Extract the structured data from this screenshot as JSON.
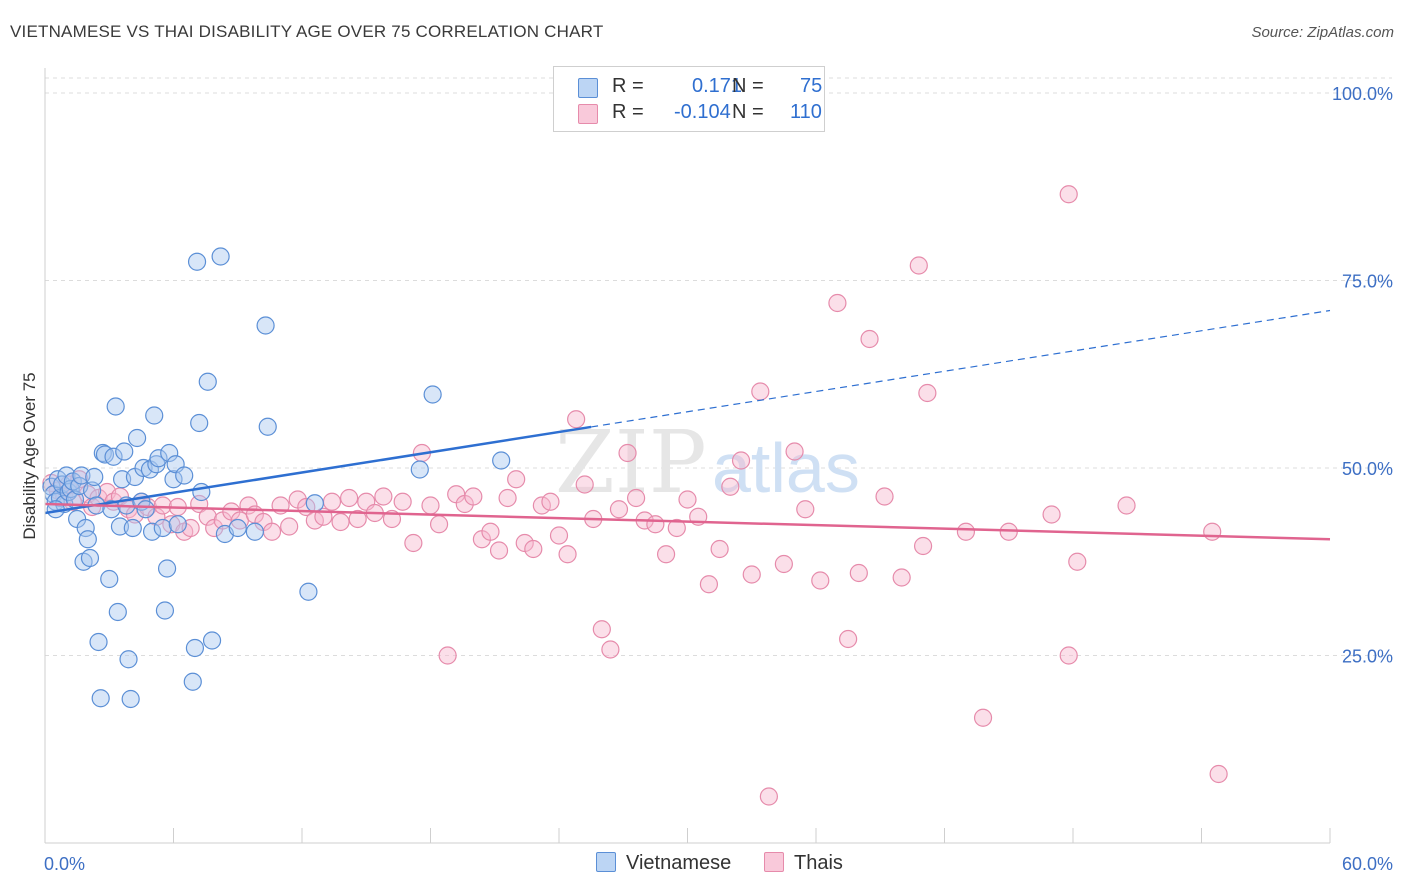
{
  "title": "VIETNAMESE VS THAI DISABILITY AGE OVER 75 CORRELATION CHART",
  "source": "Source: ZipAtlas.com",
  "watermark": {
    "zip": "ZIP",
    "atlas": "atlas"
  },
  "legend_top": {
    "rows": [
      {
        "r_label": "R =",
        "r_value": "0.171",
        "n_label": "N =",
        "n_value": "75"
      },
      {
        "r_label": "R =",
        "r_value": "-0.104",
        "n_label": "N =",
        "n_value": "110"
      }
    ]
  },
  "legend_bottom": [
    "Vietnamese",
    "Thais"
  ],
  "colors": {
    "blue_fill": "#a8c8f0",
    "blue_stroke": "#5b8fd6",
    "blue_line": "#2e6fd1",
    "pink_fill": "#f7b9cf",
    "pink_stroke": "#e68bab",
    "pink_line": "#e0648f",
    "axis_text": "#3d6fc4",
    "grid": "#dcdcdc"
  },
  "chart_data": {
    "type": "scatter",
    "title": "VIETNAMESE VS THAI DISABILITY AGE OVER 75 CORRELATION CHART",
    "ylabel": "Disability Age Over 75",
    "xlabel": "",
    "xlim": [
      0,
      60
    ],
    "ylim": [
      0,
      102
    ],
    "x_tick_labels": [
      "0.0%",
      "60.0%"
    ],
    "y_ticks": [
      25,
      50,
      75,
      100
    ],
    "y_tick_labels": [
      "25.0%",
      "50.0%",
      "75.0%",
      "100.0%"
    ],
    "grid": true,
    "series": [
      {
        "name": "Vietnamese",
        "r": 0.171,
        "n": 75,
        "trend": {
          "x0": 0,
          "y0": 44.0,
          "x1": 60,
          "y1": 71.0,
          "solid_until_x": 25.5
        },
        "points": [
          [
            0.3,
            47.5
          ],
          [
            0.4,
            46.5
          ],
          [
            0.5,
            45.5
          ],
          [
            0.6,
            48.5
          ],
          [
            0.7,
            46.0
          ],
          [
            0.8,
            47.8
          ],
          [
            0.9,
            45.2
          ],
          [
            1.0,
            49.0
          ],
          [
            1.1,
            46.8
          ],
          [
            1.2,
            47.2
          ],
          [
            1.3,
            48.2
          ],
          [
            1.4,
            45.8
          ],
          [
            0.5,
            44.5
          ],
          [
            1.5,
            43.2
          ],
          [
            1.6,
            47.6
          ],
          [
            1.7,
            49.0
          ],
          [
            1.8,
            37.5
          ],
          [
            1.9,
            42.0
          ],
          [
            2.0,
            40.5
          ],
          [
            2.1,
            38.0
          ],
          [
            2.2,
            47.0
          ],
          [
            2.3,
            48.8
          ],
          [
            2.4,
            45.0
          ],
          [
            2.5,
            26.8
          ],
          [
            2.6,
            19.3
          ],
          [
            2.7,
            52.0
          ],
          [
            2.8,
            51.8
          ],
          [
            3.0,
            35.2
          ],
          [
            3.1,
            44.5
          ],
          [
            3.2,
            51.5
          ],
          [
            3.3,
            58.2
          ],
          [
            3.4,
            30.8
          ],
          [
            3.5,
            42.2
          ],
          [
            3.6,
            48.5
          ],
          [
            3.7,
            52.2
          ],
          [
            3.8,
            45.0
          ],
          [
            3.9,
            24.5
          ],
          [
            4.0,
            19.2
          ],
          [
            4.1,
            42.0
          ],
          [
            4.2,
            48.8
          ],
          [
            4.3,
            54.0
          ],
          [
            4.5,
            45.5
          ],
          [
            4.6,
            50.0
          ],
          [
            4.7,
            44.5
          ],
          [
            4.9,
            49.8
          ],
          [
            5.0,
            41.5
          ],
          [
            5.1,
            57.0
          ],
          [
            5.2,
            50.5
          ],
          [
            5.3,
            51.3
          ],
          [
            5.5,
            42.0
          ],
          [
            5.6,
            31.0
          ],
          [
            5.7,
            36.6
          ],
          [
            5.8,
            52.0
          ],
          [
            6.0,
            48.5
          ],
          [
            6.1,
            50.5
          ],
          [
            6.2,
            42.5
          ],
          [
            6.5,
            49.0
          ],
          [
            6.9,
            21.5
          ],
          [
            7.0,
            26.0
          ],
          [
            7.1,
            77.5
          ],
          [
            7.2,
            56.0
          ],
          [
            7.3,
            46.8
          ],
          [
            7.6,
            61.5
          ],
          [
            7.8,
            27.0
          ],
          [
            8.2,
            78.2
          ],
          [
            8.4,
            41.2
          ],
          [
            9.0,
            42.0
          ],
          [
            9.8,
            41.5
          ],
          [
            10.3,
            69.0
          ],
          [
            10.4,
            55.5
          ],
          [
            12.3,
            33.5
          ],
          [
            12.6,
            45.3
          ],
          [
            17.5,
            49.8
          ],
          [
            18.1,
            59.8
          ],
          [
            21.3,
            51.0
          ]
        ]
      },
      {
        "name": "Thais",
        "r": -0.104,
        "n": 110,
        "trend": {
          "x0": 0,
          "y0": 45.2,
          "x1": 60,
          "y1": 40.5
        },
        "points": [
          [
            0.3,
            48.0
          ],
          [
            0.6,
            47.0
          ],
          [
            0.9,
            46.2
          ],
          [
            1.1,
            47.8
          ],
          [
            1.3,
            45.5
          ],
          [
            1.6,
            48.5
          ],
          [
            2.0,
            46.5
          ],
          [
            2.2,
            44.8
          ],
          [
            2.5,
            46.0
          ],
          [
            2.9,
            46.8
          ],
          [
            3.2,
            45.5
          ],
          [
            3.5,
            46.2
          ],
          [
            3.9,
            44.5
          ],
          [
            4.2,
            43.8
          ],
          [
            4.5,
            45.5
          ],
          [
            4.8,
            44.8
          ],
          [
            5.2,
            43.5
          ],
          [
            5.5,
            45.0
          ],
          [
            5.9,
            42.5
          ],
          [
            6.2,
            44.8
          ],
          [
            6.5,
            41.5
          ],
          [
            6.8,
            42.0
          ],
          [
            7.2,
            45.2
          ],
          [
            7.6,
            43.5
          ],
          [
            7.9,
            42.0
          ],
          [
            8.3,
            43.0
          ],
          [
            8.7,
            44.2
          ],
          [
            9.1,
            43.0
          ],
          [
            9.5,
            45.0
          ],
          [
            9.8,
            43.8
          ],
          [
            10.2,
            42.8
          ],
          [
            10.6,
            41.5
          ],
          [
            11.0,
            45.0
          ],
          [
            11.4,
            42.2
          ],
          [
            11.8,
            45.8
          ],
          [
            12.2,
            44.8
          ],
          [
            12.6,
            43.0
          ],
          [
            13.0,
            43.5
          ],
          [
            13.4,
            45.5
          ],
          [
            13.8,
            42.8
          ],
          [
            14.2,
            46.0
          ],
          [
            14.6,
            43.2
          ],
          [
            15.0,
            45.5
          ],
          [
            15.4,
            44.0
          ],
          [
            15.8,
            46.2
          ],
          [
            16.2,
            43.2
          ],
          [
            16.7,
            45.5
          ],
          [
            17.2,
            40.0
          ],
          [
            17.6,
            52.0
          ],
          [
            18.0,
            45.0
          ],
          [
            18.4,
            42.5
          ],
          [
            18.8,
            25.0
          ],
          [
            19.2,
            46.5
          ],
          [
            19.6,
            45.2
          ],
          [
            20.0,
            46.2
          ],
          [
            20.4,
            40.5
          ],
          [
            20.8,
            41.5
          ],
          [
            21.2,
            39.0
          ],
          [
            21.6,
            46.0
          ],
          [
            22.0,
            48.5
          ],
          [
            22.4,
            40.0
          ],
          [
            22.8,
            39.2
          ],
          [
            23.2,
            45.0
          ],
          [
            23.6,
            45.5
          ],
          [
            24.0,
            41.0
          ],
          [
            24.4,
            38.5
          ],
          [
            24.8,
            56.5
          ],
          [
            25.2,
            47.8
          ],
          [
            25.6,
            43.2
          ],
          [
            26.0,
            28.5
          ],
          [
            26.4,
            25.8
          ],
          [
            26.8,
            44.5
          ],
          [
            27.2,
            52.0
          ],
          [
            27.6,
            46.0
          ],
          [
            28.0,
            43.0
          ],
          [
            28.5,
            42.5
          ],
          [
            29.0,
            38.5
          ],
          [
            29.5,
            42.0
          ],
          [
            30.0,
            45.8
          ],
          [
            30.5,
            43.5
          ],
          [
            31.0,
            34.5
          ],
          [
            31.5,
            39.2
          ],
          [
            32.0,
            47.5
          ],
          [
            32.5,
            51.0
          ],
          [
            33.0,
            35.8
          ],
          [
            33.4,
            60.2
          ],
          [
            33.8,
            6.2
          ],
          [
            34.5,
            37.2
          ],
          [
            35.0,
            52.2
          ],
          [
            35.5,
            44.5
          ],
          [
            36.2,
            35.0
          ],
          [
            37.0,
            72.0
          ],
          [
            37.5,
            27.2
          ],
          [
            38.0,
            36.0
          ],
          [
            38.5,
            67.2
          ],
          [
            39.2,
            46.2
          ],
          [
            40.0,
            35.4
          ],
          [
            40.8,
            77.0
          ],
          [
            41.0,
            39.6
          ],
          [
            41.2,
            60.0
          ],
          [
            43.0,
            41.5
          ],
          [
            43.8,
            16.7
          ],
          [
            45.0,
            41.5
          ],
          [
            47.0,
            43.8
          ],
          [
            47.8,
            25.0
          ],
          [
            48.2,
            37.5
          ],
          [
            47.8,
            86.5
          ],
          [
            54.5,
            41.5
          ],
          [
            54.8,
            9.2
          ],
          [
            50.5,
            45.0
          ]
        ]
      }
    ]
  }
}
